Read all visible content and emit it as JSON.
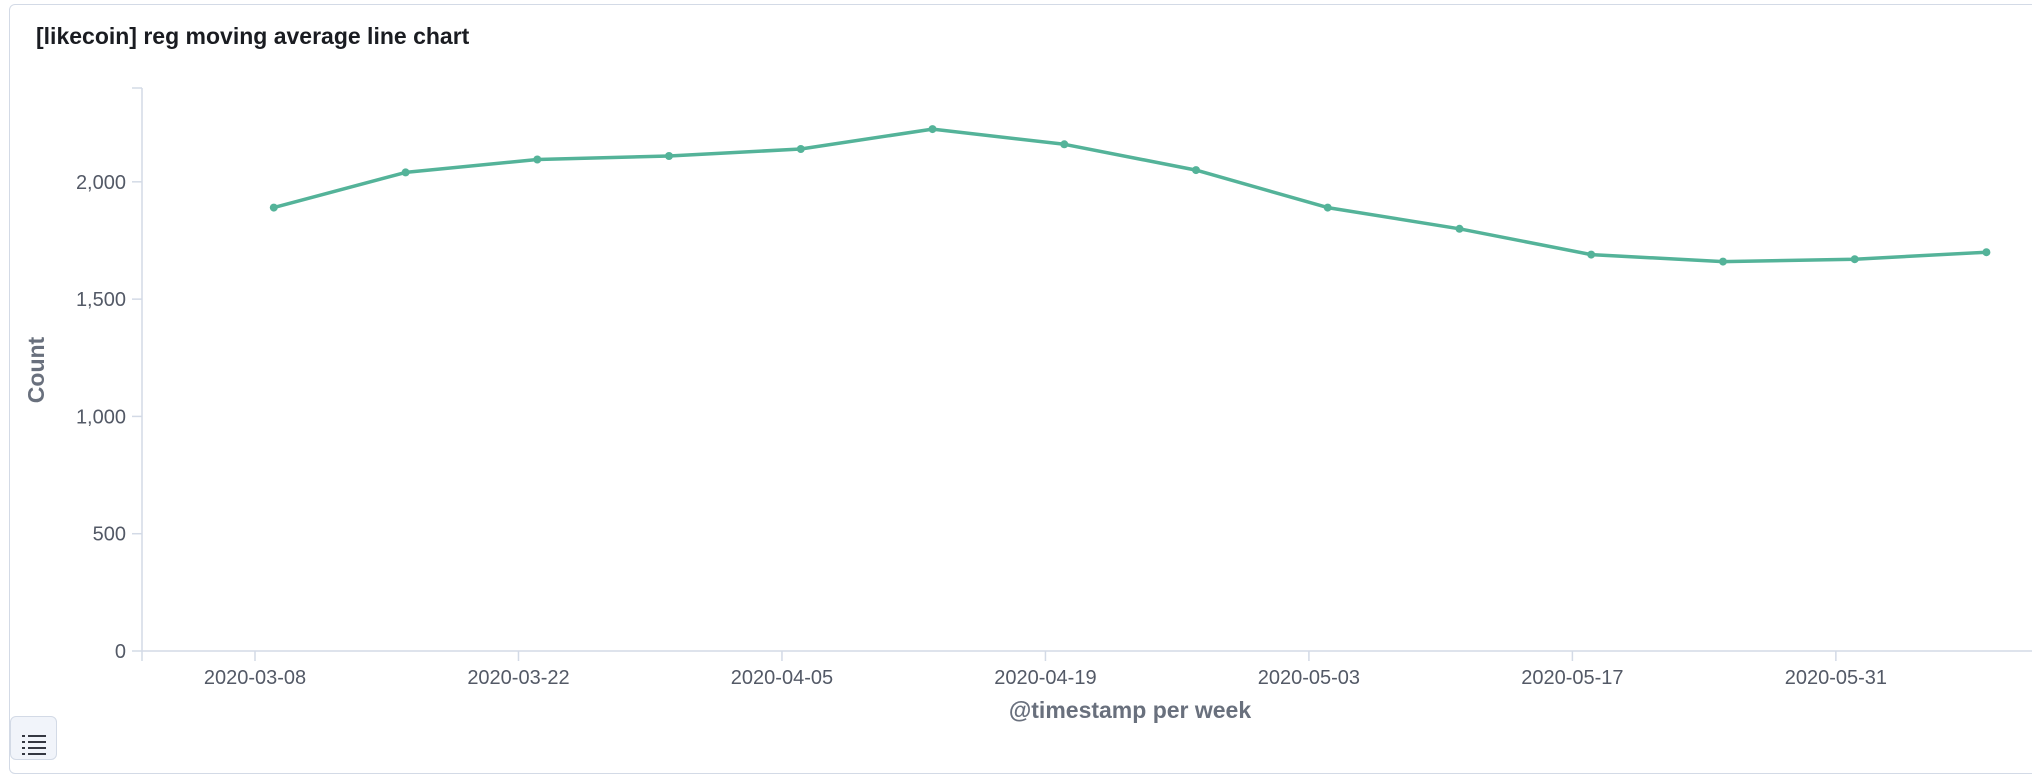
{
  "panel": {
    "title": "[likecoin] reg moving average line chart"
  },
  "chart_data": {
    "type": "line",
    "title": "[likecoin] reg moving average line chart",
    "xlabel": "@timestamp per week",
    "ylabel": "Count",
    "ylim": [
      0,
      2400
    ],
    "yticks": [
      0,
      500,
      1000,
      1500,
      2000
    ],
    "ytick_labels": [
      "0",
      "500",
      "1,000",
      "1,500",
      "2,000"
    ],
    "xticks": [
      "2020-03-08",
      "2020-03-22",
      "2020-04-05",
      "2020-04-19",
      "2020-05-03",
      "2020-05-17",
      "2020-05-31"
    ],
    "grid": false,
    "series": [
      {
        "x": [
          "2020-03-09",
          "2020-03-16",
          "2020-03-23",
          "2020-03-30",
          "2020-04-06",
          "2020-04-13",
          "2020-04-20",
          "2020-04-27",
          "2020-05-04",
          "2020-05-11",
          "2020-05-18",
          "2020-05-25",
          "2020-06-01",
          "2020-06-08"
        ],
        "values": [
          1890,
          2040,
          2095,
          2110,
          2140,
          2225,
          2160,
          2050,
          1890,
          1800,
          1690,
          1660,
          1670,
          1700
        ],
        "color": "#54b399"
      }
    ]
  },
  "legend_toggle": {
    "icon": "list-icon"
  }
}
